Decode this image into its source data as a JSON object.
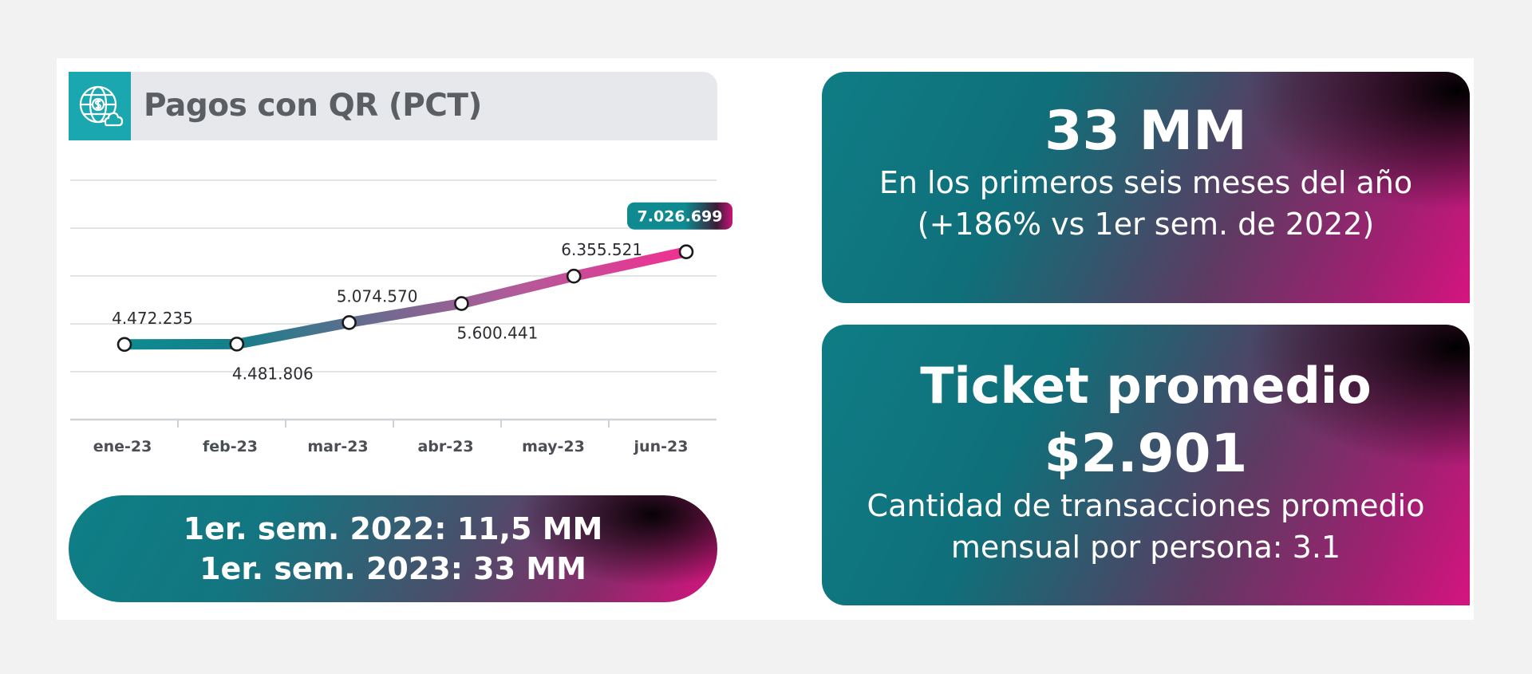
{
  "header": {
    "title": "Pagos con QR (PCT)",
    "icon": "globe-money-icon"
  },
  "chart_data": {
    "type": "line",
    "title": "Pagos con QR (PCT)",
    "categories": [
      "ene-23",
      "feb-23",
      "mar-23",
      "abr-23",
      "may-23",
      "jun-23"
    ],
    "values": [
      4472235,
      4481806,
      5074570,
      5600441,
      6355521,
      7026699
    ],
    "labels": [
      "4.472.235",
      "4.481.806",
      "5.074.570",
      "5.600.441",
      "6.355.521",
      "7.026.699"
    ],
    "ylim": [
      2400000,
      9000000
    ],
    "grid": true,
    "line_colors": [
      "#0e8a90",
      "#e8308f"
    ],
    "highlight_color": "#0e8a90"
  },
  "summary_pill": {
    "line1": "1er. sem. 2022: 11,5 MM",
    "line2": "1er. sem. 2023: 33 MM"
  },
  "panel_total": {
    "value": "33 MM",
    "line1": "En los primeros seis meses del año",
    "line2": "(+186% vs 1er sem. de 2022)"
  },
  "panel_ticket": {
    "title": "Ticket promedio",
    "amount": "$2.901",
    "line1": "Cantidad de transacciones promedio",
    "line2": "mensual por persona: 3.1"
  },
  "colors": {
    "teal": "#1aa7b0",
    "magenta": "#d8137f",
    "title_bg": "#e6e8eb"
  }
}
